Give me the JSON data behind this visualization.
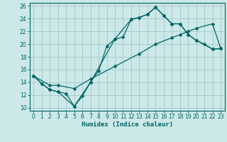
{
  "xlabel": "Humidex (Indice chaleur)",
  "bg_color": "#cce8e8",
  "grid_color": "#aacccc",
  "line_color": "#006666",
  "xlim": [
    -0.5,
    23.5
  ],
  "ylim": [
    9.5,
    26.5
  ],
  "xticks": [
    0,
    1,
    2,
    3,
    4,
    5,
    6,
    7,
    8,
    9,
    10,
    11,
    12,
    13,
    14,
    15,
    16,
    17,
    18,
    19,
    20,
    21,
    22,
    23
  ],
  "yticks": [
    10,
    12,
    14,
    16,
    18,
    20,
    22,
    24,
    26
  ],
  "line1_x": [
    0,
    1,
    2,
    3,
    4,
    5,
    6,
    7,
    8,
    9,
    10,
    11,
    12,
    13,
    14,
    15,
    16,
    17,
    18,
    19,
    20,
    21,
    22,
    23
  ],
  "line1_y": [
    15,
    13.8,
    12.8,
    12.5,
    12.2,
    10.2,
    11.8,
    14.0,
    15.8,
    19.7,
    20.8,
    21.1,
    23.9,
    24.2,
    24.7,
    25.8,
    24.5,
    23.2,
    23.2,
    21.5,
    20.6,
    20.0,
    19.2,
    19.3
  ],
  "line2_x": [
    0,
    1,
    2,
    3,
    5,
    7,
    10,
    12,
    13,
    14,
    15,
    16,
    17,
    18,
    19,
    20,
    22,
    23
  ],
  "line2_y": [
    15,
    13.8,
    12.8,
    12.5,
    10.2,
    14.0,
    20.8,
    23.9,
    24.2,
    24.7,
    25.8,
    24.5,
    23.2,
    23.2,
    21.5,
    20.6,
    19.2,
    19.3
  ],
  "line3_x": [
    0,
    2,
    3,
    5,
    7,
    10,
    13,
    15,
    17,
    18,
    19,
    20,
    22,
    23
  ],
  "line3_y": [
    15,
    13.5,
    13.5,
    13.0,
    14.5,
    16.5,
    18.5,
    20.0,
    21.0,
    21.5,
    22.0,
    22.5,
    23.2,
    19.3
  ]
}
